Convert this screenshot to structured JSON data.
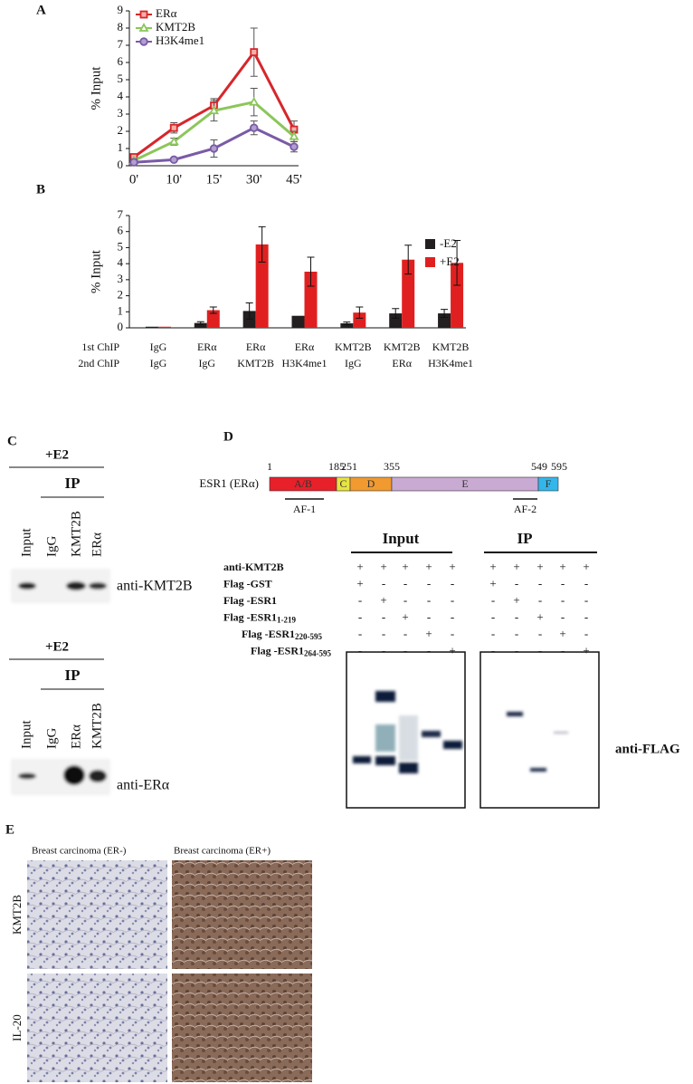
{
  "chart_data": [
    {
      "type": "line",
      "panel": "A",
      "ylabel": "% Input",
      "categories": [
        "0'",
        "10'",
        "15'",
        "30'",
        "45'"
      ],
      "series": [
        {
          "name": "ERα",
          "color": "#d7262b",
          "marker": "square",
          "values": [
            0.5,
            2.2,
            3.5,
            6.6,
            2.1
          ],
          "errors": [
            0.1,
            0.3,
            0.4,
            1.4,
            0.5
          ]
        },
        {
          "name": "KMT2B",
          "color": "#8cc65a",
          "marker": "triangle",
          "values": [
            0.3,
            1.4,
            3.2,
            3.7,
            1.7
          ],
          "errors": [
            0.1,
            0.2,
            0.6,
            0.8,
            0.3
          ]
        },
        {
          "name": "H3K4me1",
          "color": "#7a5aa6",
          "marker": "circle",
          "values": [
            0.2,
            0.35,
            1.0,
            2.2,
            1.1
          ],
          "errors": [
            0.05,
            0.05,
            0.5,
            0.4,
            0.3
          ]
        }
      ],
      "ylim": [
        0,
        9
      ],
      "yticks": [
        0,
        1,
        2,
        3,
        4,
        5,
        6,
        7,
        8,
        9
      ]
    },
    {
      "type": "bar",
      "panel": "B",
      "ylabel": "% Input",
      "row_labels": [
        "1st ChIP",
        "2nd ChIP"
      ],
      "categories": [
        "IgG",
        "ERα",
        "ERα",
        "ERα",
        "KMT2B",
        "KMT2B",
        "KMT2B"
      ],
      "categories_2": [
        "IgG",
        "IgG",
        "KMT2B",
        "H3K4me1",
        "IgG",
        "ERα",
        "H3K4me1"
      ],
      "series": [
        {
          "name": "-E2",
          "color": "#231f20",
          "values": [
            0.07,
            0.3,
            1.05,
            0.75,
            0.28,
            0.9,
            0.9
          ],
          "errors": [
            0,
            0.08,
            0.5,
            0,
            0.08,
            0.3,
            0.25
          ]
        },
        {
          "name": "+E2",
          "color": "#e02020",
          "values": [
            0.07,
            1.1,
            5.2,
            3.5,
            0.95,
            4.25,
            4.05
          ],
          "errors": [
            0,
            0.2,
            1.1,
            0.9,
            0.35,
            0.9,
            1.4
          ]
        }
      ],
      "ylim": [
        0,
        7
      ],
      "yticks": [
        0,
        1,
        2,
        3,
        4,
        5,
        6,
        7
      ]
    }
  ],
  "panel_c": {
    "label": "C",
    "blots": [
      {
        "treatment": "+E2",
        "ip": "IP",
        "lanes": [
          "Input",
          "IgG",
          "KMT2B",
          "ERα"
        ],
        "antibody": "anti-KMT2B"
      },
      {
        "treatment": "+E2",
        "ip": "IP",
        "lanes": [
          "Input",
          "IgG",
          "ERα",
          "KMT2B"
        ],
        "antibody": "anti-ERα"
      }
    ]
  },
  "panel_d": {
    "label": "D",
    "protein": "ESR1 (ERα)",
    "positions": [
      "1",
      "185",
      "251",
      "355",
      "549",
      "595"
    ],
    "domains": [
      "A/B",
      "C",
      "D",
      "E",
      "F"
    ],
    "functions": [
      "AF-1",
      "AF-2"
    ],
    "groups": [
      "Input",
      "IP"
    ],
    "rows": [
      {
        "label": "anti-KMT2B",
        "signs": [
          "+",
          "+",
          "+",
          "+",
          "+",
          "+",
          "+",
          "+",
          "+",
          "+"
        ]
      },
      {
        "label": "Flag -GST",
        "signs": [
          "+",
          "-",
          "-",
          "-",
          "-",
          "+",
          "-",
          "-",
          "-",
          "-"
        ]
      },
      {
        "label": "Flag -ESR1",
        "signs": [
          "-",
          "+",
          "-",
          "-",
          "-",
          "-",
          "+",
          "-",
          "-",
          "-"
        ]
      },
      {
        "label": "Flag -ESR1",
        "sub": "1-219",
        "signs": [
          "-",
          "-",
          "+",
          "-",
          "-",
          "-",
          "-",
          "+",
          "-",
          "-"
        ]
      },
      {
        "label": "Flag -ESR1",
        "sub": "220-595",
        "signs": [
          "-",
          "-",
          "-",
          "+",
          "-",
          "-",
          "-",
          "-",
          "+",
          "-"
        ]
      },
      {
        "label": "Flag -ESR1",
        "sub": "264-595",
        "signs": [
          "-",
          "-",
          "-",
          "-",
          "+",
          "-",
          "-",
          "-",
          "-",
          "+"
        ]
      }
    ],
    "antibody": "anti-FLAG"
  },
  "panel_e": {
    "label": "E",
    "columns": [
      "Breast carcinoma (ER-)",
      "Breast carcinoma (ER+)"
    ],
    "rows": [
      "KMT2B",
      "IL-20"
    ]
  }
}
